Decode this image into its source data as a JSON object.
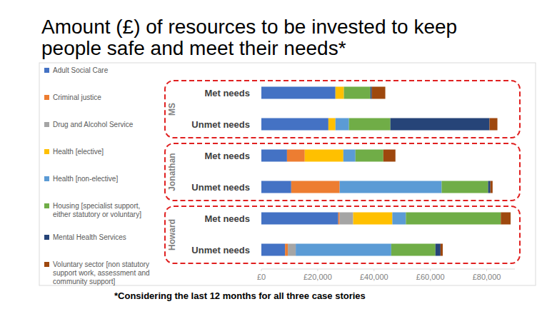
{
  "chart_data": {
    "type": "bar",
    "orientation": "horizontal",
    "stacked": true,
    "grid": false,
    "legend": "left",
    "data_labels": false,
    "title": "Amount (£) of resources to be invested to keep people safe and meet their needs*",
    "annotations": [
      "*Considering the last 12 months for all three case stories"
    ],
    "groups": [
      "MS",
      "Jonathan",
      "Howard"
    ],
    "categories": [
      "Met needs",
      "Unmet needs",
      "Met needs",
      "Unmet needs",
      "Met needs",
      "Unmet needs"
    ],
    "xlim": [
      0,
      90000
    ],
    "xticks": [
      {
        "value": 0,
        "label": "£0"
      },
      {
        "value": 20000,
        "label": "£20,000"
      },
      {
        "value": 40000,
        "label": "£40,000"
      },
      {
        "value": 60000,
        "label": "£60,000"
      },
      {
        "value": 80000,
        "label": "£80,000"
      }
    ],
    "series": [
      {
        "name": "Adult Social Care",
        "color": "#4472c4",
        "values": [
          26300,
          23800,
          9100,
          10600,
          27300,
          8400
        ]
      },
      {
        "name": "Criminal justice",
        "color": "#ed7d31",
        "values": [
          0,
          0,
          6300,
          17200,
          500,
          1000
        ]
      },
      {
        "name": "Drug and Alcohol Service",
        "color": "#a5a5a5",
        "values": [
          0,
          0,
          0,
          0,
          4800,
          2800
        ]
      },
      {
        "name": "Health [elective]",
        "color": "#ffc000",
        "values": [
          3000,
          2500,
          13700,
          0,
          13900,
          0
        ]
      },
      {
        "name": "Health [non-elective]",
        "color": "#5b9bd5",
        "values": [
          0,
          4800,
          4300,
          36200,
          4800,
          33900
        ]
      },
      {
        "name": "Housing [specialist support, either statutory or voluntary]",
        "color": "#70ad47",
        "values": [
          9400,
          14700,
          9900,
          16500,
          33700,
          15700
        ]
      },
      {
        "name": "Mental Health Services",
        "color": "#264478",
        "values": [
          500,
          35200,
          0,
          800,
          0,
          1800
        ]
      },
      {
        "name": "Voluntary sector [non statutory support work, assessment and community support]",
        "color": "#9e480e",
        "values": [
          4800,
          2800,
          4300,
          800,
          3500,
          800
        ]
      }
    ]
  }
}
